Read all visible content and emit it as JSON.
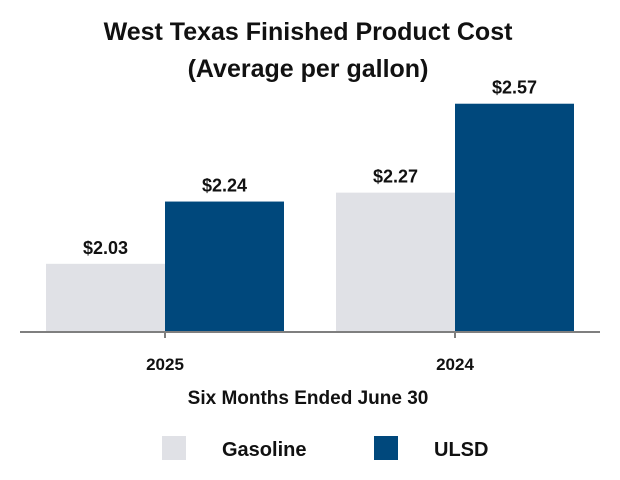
{
  "chart_data": {
    "type": "bar",
    "title": "West Texas Finished Product Cost",
    "subtitle": "(Average per gallon)",
    "xlabel": "Six Months Ended June 30",
    "ylabel": "",
    "categories": [
      "2025",
      "2024"
    ],
    "series": [
      {
        "name": "Gasoline",
        "values": [
          2.03,
          2.27
        ],
        "labels": [
          "$2.03",
          "$2.27"
        ],
        "color": "#e0e1e6"
      },
      {
        "name": "ULSD",
        "values": [
          2.24,
          2.57
        ],
        "labels": [
          "$2.24",
          "$2.57"
        ],
        "color": "#00487c"
      }
    ],
    "ylim": [
      1.8,
      2.65
    ],
    "grid": false,
    "legend_position": "bottom"
  },
  "colors": {
    "axis": "#7f7f7f"
  }
}
